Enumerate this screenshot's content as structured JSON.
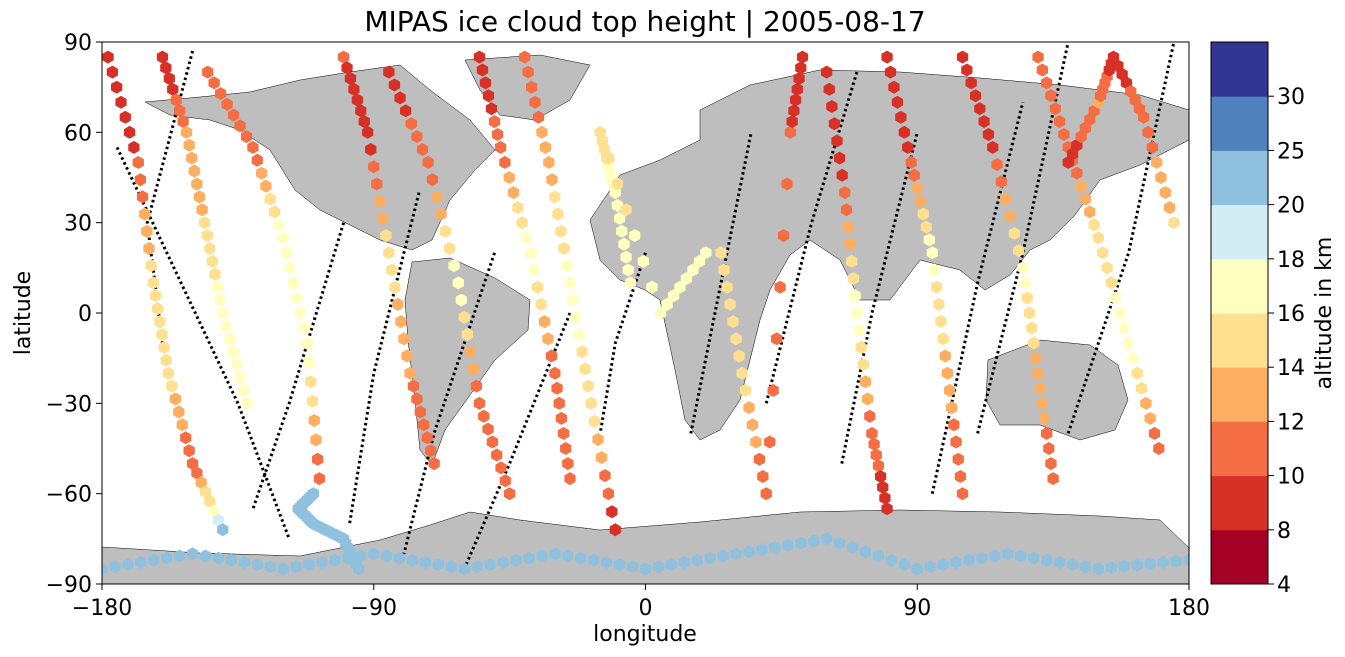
{
  "chart_data": {
    "type": "scatter",
    "title": "MIPAS ice cloud top height | 2005-08-17",
    "xlabel": "longitude",
    "ylabel": "latitude",
    "xlim": [
      -180,
      180
    ],
    "ylim": [
      -90,
      90
    ],
    "xticks": [
      "−180",
      "−90",
      "0",
      "90",
      "180"
    ],
    "yticks": [
      "90",
      "60",
      "30",
      "0",
      "−30",
      "−60",
      "−90"
    ],
    "colorbar": {
      "label": "altitude in km",
      "boundaries": [
        4,
        8,
        10,
        12,
        14,
        16,
        18,
        20,
        25,
        30
      ],
      "tick_labels": [
        "4",
        "8",
        "10",
        "12",
        "14",
        "16",
        "18",
        "20",
        "25",
        "30"
      ],
      "colors": [
        "#a50026",
        "#d73027",
        "#f46d43",
        "#fdae61",
        "#fee090",
        "#ffffbf",
        "#d4ecf4",
        "#8fc1de",
        "#4f81bd",
        "#313695"
      ]
    },
    "land_color": "#bebebe",
    "track_color": "#000000",
    "tracks": [
      {
        "lon": [
          -175,
          -135,
          -118
        ],
        "lat": [
          55,
          -30,
          -75
        ]
      },
      {
        "lon": [
          -150,
          -165,
          -160
        ],
        "lat": [
          87,
          30,
          -10
        ]
      },
      {
        "lon": [
          -100,
          -118,
          -130
        ],
        "lat": [
          30,
          -30,
          -65
        ]
      },
      {
        "lon": [
          -75,
          -90,
          -98
        ],
        "lat": [
          40,
          -20,
          -70
        ]
      },
      {
        "lon": [
          -50,
          -70,
          -80
        ],
        "lat": [
          20,
          -40,
          -80
        ]
      },
      {
        "lon": [
          -25,
          -45,
          -60
        ],
        "lat": [
          0,
          -50,
          -85
        ]
      },
      {
        "lon": [
          0,
          -10,
          -15
        ],
        "lat": [
          20,
          -10,
          -40
        ]
      },
      {
        "lon": [
          15,
          25,
          35
        ],
        "lat": [
          -40,
          10,
          60
        ]
      },
      {
        "lon": [
          40,
          55,
          70
        ],
        "lat": [
          -30,
          30,
          80
        ]
      },
      {
        "lon": [
          65,
          75,
          90
        ],
        "lat": [
          -50,
          0,
          60
        ]
      },
      {
        "lon": [
          95,
          110,
          125
        ],
        "lat": [
          -60,
          10,
          70
        ]
      },
      {
        "lon": [
          110,
          125,
          140
        ],
        "lat": [
          -40,
          20,
          90
        ]
      },
      {
        "lon": [
          140,
          160,
          175
        ],
        "lat": [
          -40,
          20,
          90
        ]
      }
    ],
    "segments": [
      {
        "lon": [
          -178,
          -168,
          -163,
          -158,
          -150,
          -140
        ],
        "lat": [
          85,
          50,
          10,
          -20,
          -50,
          -72
        ],
        "alt": [
          8,
          10,
          15,
          15,
          10,
          20
        ]
      },
      {
        "lon": [
          -160,
          -152,
          -146,
          -140,
          -132
        ],
        "lat": [
          85,
          60,
          30,
          0,
          -30
        ],
        "alt": [
          8,
          12,
          14,
          17,
          17
        ]
      },
      {
        "lon": [
          -145,
          -130,
          -120,
          -112,
          -108
        ],
        "lat": [
          80,
          55,
          25,
          -10,
          -55
        ],
        "alt": [
          10,
          10,
          17,
          17,
          10
        ]
      },
      {
        "lon": [
          -110,
          -115,
          -110,
          -100,
          -95
        ],
        "lat": [
          -60,
          -65,
          -70,
          -75,
          -85
        ],
        "alt": [
          22,
          22,
          22,
          22,
          22
        ]
      },
      {
        "lon": [
          -100,
          -92,
          -85,
          -78,
          -70
        ],
        "lat": [
          85,
          60,
          20,
          -20,
          -50
        ],
        "alt": [
          10,
          9,
          15,
          12,
          10
        ]
      },
      {
        "lon": [
          -85,
          -72,
          -62,
          -55,
          -45
        ],
        "lat": [
          80,
          50,
          10,
          -30,
          -60
        ],
        "alt": [
          9,
          11,
          17,
          11,
          10
        ]
      },
      {
        "lon": [
          -55,
          -48,
          -38,
          -30,
          -25
        ],
        "lat": [
          85,
          55,
          20,
          -20,
          -55
        ],
        "alt": [
          8,
          11,
          17,
          11,
          10
        ]
      },
      {
        "lon": [
          -40,
          -32,
          -25,
          -18,
          -10
        ],
        "lat": [
          85,
          50,
          10,
          -30,
          -72
        ],
        "alt": [
          10,
          13,
          17,
          15,
          9
        ]
      },
      {
        "lon": [
          -5,
          -10,
          -15,
          5,
          20
        ],
        "lat": [
          10,
          40,
          60,
          0,
          20
        ],
        "alt": [
          17,
          17,
          15,
          17,
          17
        ]
      },
      {
        "lon": [
          25,
          32,
          40,
          48,
          52
        ],
        "lat": [
          20,
          -20,
          -60,
          60,
          85
        ],
        "alt": [
          15,
          15,
          10,
          10,
          9
        ]
      },
      {
        "lon": [
          60,
          66,
          70,
          75,
          80
        ],
        "lat": [
          80,
          40,
          0,
          -40,
          -65
        ],
        "alt": [
          9,
          10,
          17,
          11,
          9
        ]
      },
      {
        "lon": [
          80,
          88,
          95,
          100,
          105
        ],
        "lat": [
          85,
          50,
          20,
          -20,
          -60
        ],
        "alt": [
          9,
          10,
          17,
          13,
          10
        ]
      },
      {
        "lon": [
          105,
          115,
          125,
          130,
          135
        ],
        "lat": [
          85,
          55,
          15,
          -20,
          -55
        ],
        "alt": [
          9,
          9,
          17,
          13,
          11
        ]
      },
      {
        "lon": [
          130,
          140,
          150,
          160,
          170
        ],
        "lat": [
          85,
          55,
          25,
          -10,
          -45
        ],
        "alt": [
          10,
          10,
          15,
          17,
          11
        ]
      },
      {
        "lon": [
          140,
          150,
          155,
          165,
          175
        ],
        "lat": [
          50,
          70,
          85,
          65,
          30
        ],
        "alt": [
          9,
          12,
          9,
          11,
          14
        ]
      },
      {
        "lon": [
          -180,
          -150,
          -120,
          -90,
          -60,
          -30,
          0,
          30,
          60,
          90,
          120,
          150,
          180
        ],
        "lat": [
          -85,
          -80,
          -85,
          -80,
          -85,
          -80,
          -85,
          -80,
          -75,
          -85,
          -80,
          -85,
          -82
        ],
        "alt": [
          22,
          22,
          22,
          22,
          22,
          22,
          22,
          22,
          22,
          22,
          22,
          22,
          22
        ]
      }
    ]
  }
}
